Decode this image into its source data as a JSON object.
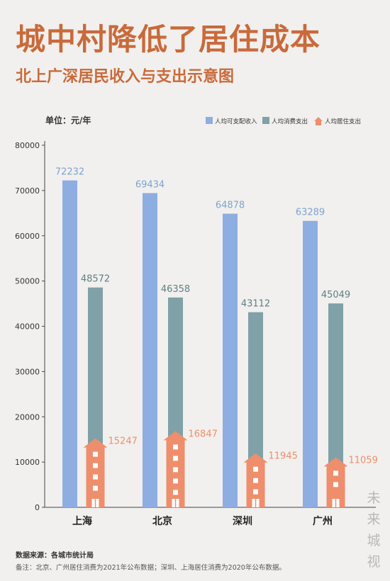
{
  "title": "城中村降低了居住成本",
  "subtitle": "北上广深居民收入与支出示意图",
  "watermark": [
    "未",
    "来",
    "城",
    "视"
  ],
  "footer": {
    "source": "数据来源：各城市统计局",
    "note": "备注：北京、广州居住消费为2021年公布数据；深圳、上海居住消费为2020年公布数据。"
  },
  "colors": {
    "title": "#c96a3a",
    "income": "#8eade0",
    "consumption": "#7fa1a7",
    "housing": "#ee8e6c",
    "income_label": "#7ea3cf",
    "consumption_label": "#5e7f84",
    "housing_label": "#ee8e6c"
  },
  "chart_data": {
    "type": "bar",
    "unit_label": "单位：元/年",
    "categories": [
      "上海",
      "北京",
      "深圳",
      "广州"
    ],
    "series": [
      {
        "name": "人均可支配收入",
        "values": [
          72232,
          69434,
          64878,
          63289
        ]
      },
      {
        "name": "人均消费支出",
        "values": [
          48572,
          46358,
          43112,
          45049
        ]
      },
      {
        "name": "人均居住支出",
        "values": [
          15247,
          16847,
          11945,
          11059
        ]
      }
    ],
    "ylim": [
      0,
      80000
    ],
    "yticks": [
      0,
      10000,
      20000,
      30000,
      40000,
      50000,
      60000,
      70000,
      80000
    ],
    "grid": false,
    "legend_position": "top-right"
  }
}
